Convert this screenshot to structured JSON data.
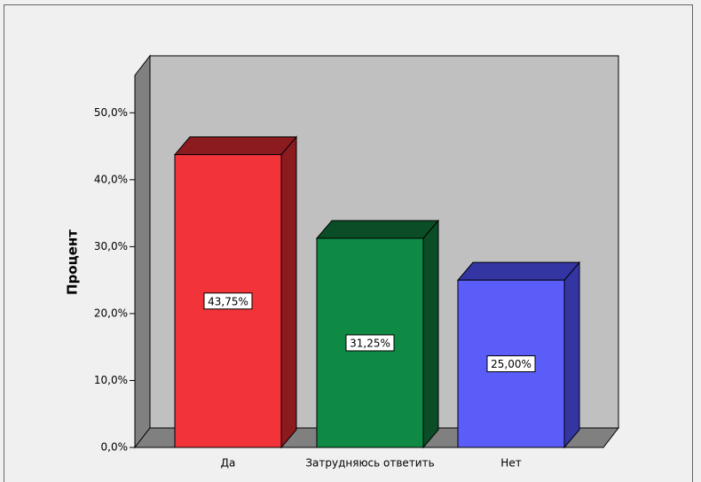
{
  "chart_data": {
    "type": "bar3d",
    "ylabel": "Процент",
    "categories": [
      "Да",
      "Затрудняюсь ответить",
      "Нет"
    ],
    "values": [
      43.75,
      31.25,
      25
    ],
    "value_labels": [
      "43,75%",
      "31,25%",
      "25,00%"
    ],
    "colors": [
      "#f23339",
      "#0f8a45",
      "#5b5df8"
    ],
    "side_colors": [
      "#8c1b1f",
      "#0a4d26",
      "#3335a3"
    ],
    "ylim": [
      0,
      55.6
    ],
    "yticks": [
      {
        "value": 0,
        "label": "0,0%"
      },
      {
        "value": 10,
        "label": "10,0%"
      },
      {
        "value": 20,
        "label": "20,0%"
      },
      {
        "value": 30,
        "label": "30,0%"
      },
      {
        "value": 40,
        "label": "40,0%"
      },
      {
        "value": 50,
        "label": "50,0%"
      }
    ]
  }
}
